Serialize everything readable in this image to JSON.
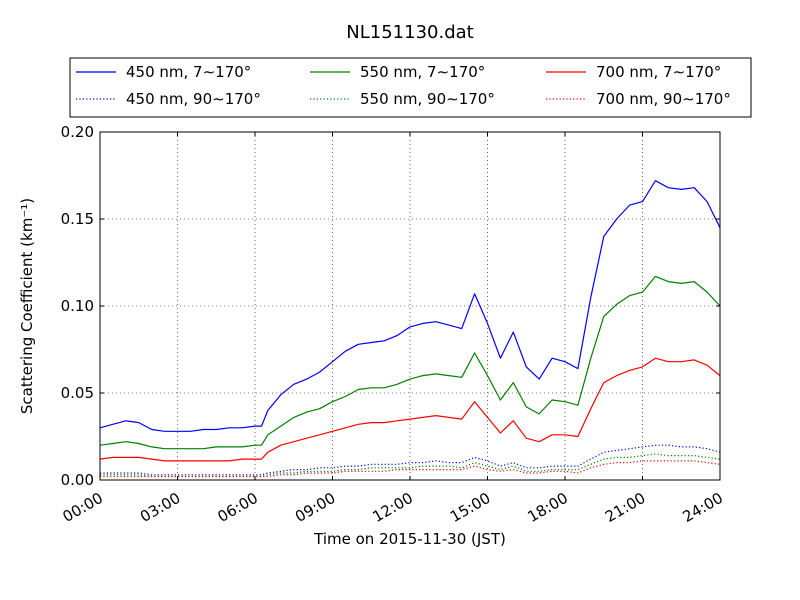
{
  "chart_data": {
    "type": "line",
    "title": "NL151130.dat",
    "xlabel": "Time on 2015-11-30 (JST)",
    "ylabel": "Scattering Coefficient (km⁻¹)",
    "xlim": [
      0,
      24
    ],
    "ylim": [
      0,
      0.2
    ],
    "x_ticks": [
      "00:00",
      "03:00",
      "06:00",
      "09:00",
      "12:00",
      "15:00",
      "18:00",
      "21:00",
      "24:00"
    ],
    "y_ticks": [
      "0.00",
      "0.05",
      "0.10",
      "0.15",
      "0.20"
    ],
    "grid": true,
    "legend_placement": "top",
    "x": [
      0,
      0.5,
      1,
      1.5,
      2,
      2.5,
      3,
      3.5,
      4,
      4.5,
      5,
      5.5,
      6,
      6.25,
      6.5,
      7,
      7.5,
      8,
      8.5,
      9,
      9.5,
      10,
      10.5,
      11,
      11.5,
      12,
      12.5,
      13,
      13.5,
      14,
      14.5,
      15,
      15.5,
      16,
      16.5,
      17,
      17.5,
      18,
      18.5,
      19,
      19.5,
      20,
      20.5,
      21,
      21.5,
      22,
      22.5,
      23,
      23.5,
      24
    ],
    "series": [
      {
        "name": "450 nm, 7∼170°",
        "color": "#0000ff",
        "style": "solid",
        "values": [
          0.03,
          0.032,
          0.034,
          0.033,
          0.029,
          0.028,
          0.028,
          0.028,
          0.029,
          0.029,
          0.03,
          0.03,
          0.031,
          0.031,
          0.04,
          0.049,
          0.055,
          0.058,
          0.062,
          0.068,
          0.074,
          0.078,
          0.079,
          0.08,
          0.083,
          0.088,
          0.09,
          0.091,
          0.089,
          0.087,
          0.107,
          0.09,
          0.07,
          0.085,
          0.065,
          0.058,
          0.07,
          0.068,
          0.064,
          0.105,
          0.14,
          0.15,
          0.158,
          0.16,
          0.172,
          0.168,
          0.167,
          0.168,
          0.16,
          0.145
        ]
      },
      {
        "name": "450 nm, 90∼170°",
        "color": "#0000ff",
        "style": "dotted",
        "values": [
          0.004,
          0.004,
          0.004,
          0.004,
          0.003,
          0.003,
          0.003,
          0.003,
          0.003,
          0.003,
          0.003,
          0.003,
          0.003,
          0.003,
          0.004,
          0.005,
          0.006,
          0.006,
          0.007,
          0.007,
          0.008,
          0.008,
          0.009,
          0.009,
          0.009,
          0.01,
          0.01,
          0.011,
          0.01,
          0.01,
          0.013,
          0.011,
          0.008,
          0.01,
          0.007,
          0.007,
          0.008,
          0.008,
          0.008,
          0.012,
          0.016,
          0.017,
          0.018,
          0.019,
          0.02,
          0.02,
          0.019,
          0.019,
          0.018,
          0.016
        ]
      },
      {
        "name": "550 nm, 7∼170°",
        "color": "#008000",
        "style": "solid",
        "values": [
          0.02,
          0.021,
          0.022,
          0.021,
          0.019,
          0.018,
          0.018,
          0.018,
          0.018,
          0.019,
          0.019,
          0.019,
          0.02,
          0.02,
          0.026,
          0.031,
          0.036,
          0.039,
          0.041,
          0.045,
          0.048,
          0.052,
          0.053,
          0.053,
          0.055,
          0.058,
          0.06,
          0.061,
          0.06,
          0.059,
          0.073,
          0.06,
          0.046,
          0.056,
          0.042,
          0.038,
          0.046,
          0.045,
          0.043,
          0.07,
          0.094,
          0.101,
          0.106,
          0.108,
          0.117,
          0.114,
          0.113,
          0.114,
          0.108,
          0.1
        ]
      },
      {
        "name": "550 nm, 90∼170°",
        "color": "#008000",
        "style": "dotted",
        "values": [
          0.003,
          0.003,
          0.003,
          0.003,
          0.002,
          0.002,
          0.002,
          0.002,
          0.002,
          0.002,
          0.002,
          0.002,
          0.002,
          0.002,
          0.003,
          0.004,
          0.004,
          0.005,
          0.005,
          0.005,
          0.006,
          0.006,
          0.007,
          0.007,
          0.007,
          0.007,
          0.008,
          0.008,
          0.008,
          0.007,
          0.01,
          0.008,
          0.006,
          0.008,
          0.005,
          0.005,
          0.006,
          0.006,
          0.006,
          0.009,
          0.012,
          0.013,
          0.013,
          0.014,
          0.015,
          0.014,
          0.014,
          0.014,
          0.013,
          0.012
        ]
      },
      {
        "name": "700 nm, 7∼170°",
        "color": "#ff0000",
        "style": "solid",
        "values": [
          0.012,
          0.013,
          0.013,
          0.013,
          0.012,
          0.011,
          0.011,
          0.011,
          0.011,
          0.011,
          0.011,
          0.012,
          0.012,
          0.012,
          0.016,
          0.02,
          0.022,
          0.024,
          0.026,
          0.028,
          0.03,
          0.032,
          0.033,
          0.033,
          0.034,
          0.035,
          0.036,
          0.037,
          0.036,
          0.035,
          0.045,
          0.036,
          0.027,
          0.034,
          0.024,
          0.022,
          0.026,
          0.026,
          0.025,
          0.041,
          0.056,
          0.06,
          0.063,
          0.065,
          0.07,
          0.068,
          0.068,
          0.069,
          0.066,
          0.06
        ]
      },
      {
        "name": "700 nm, 90∼170°",
        "color": "#ff0000",
        "style": "dotted",
        "values": [
          0.002,
          0.002,
          0.002,
          0.002,
          0.002,
          0.002,
          0.002,
          0.002,
          0.002,
          0.002,
          0.002,
          0.002,
          0.002,
          0.002,
          0.002,
          0.003,
          0.003,
          0.004,
          0.004,
          0.004,
          0.005,
          0.005,
          0.005,
          0.005,
          0.006,
          0.006,
          0.006,
          0.006,
          0.006,
          0.006,
          0.008,
          0.006,
          0.005,
          0.006,
          0.004,
          0.004,
          0.005,
          0.005,
          0.004,
          0.007,
          0.009,
          0.01,
          0.01,
          0.011,
          0.011,
          0.011,
          0.011,
          0.011,
          0.01,
          0.009
        ]
      }
    ]
  }
}
